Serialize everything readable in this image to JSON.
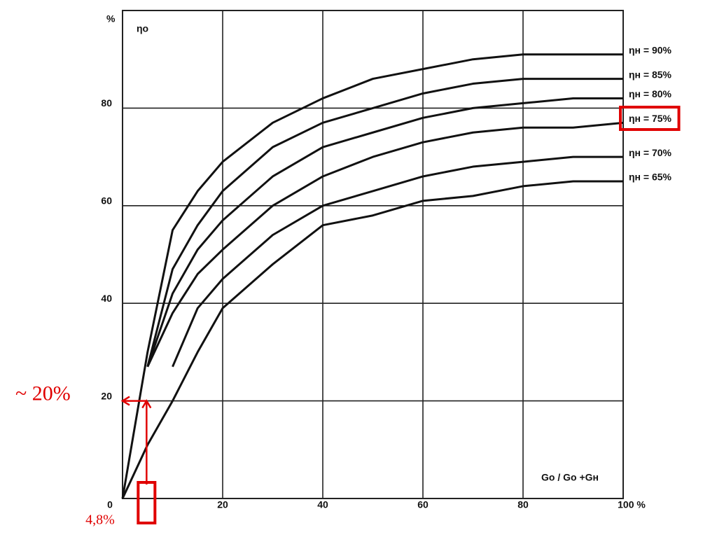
{
  "chart_data": {
    "type": "line",
    "y_axis_label": "%",
    "y_axis_title": "ηо",
    "x_axis_title": "Go / Go +Gн",
    "x": [
      0,
      5,
      10,
      15,
      20,
      30,
      40,
      50,
      60,
      70,
      80,
      90,
      100
    ],
    "series": [
      {
        "name": "ηн = 90%",
        "color": "#111111",
        "values": [
          0,
          30,
          55,
          63,
          69,
          77,
          82,
          86,
          88,
          90,
          91,
          91,
          91
        ]
      },
      {
        "name": "ηн = 85%",
        "color": "#111111",
        "values": [
          null,
          27,
          47,
          56,
          63,
          72,
          77,
          80,
          83,
          85,
          86,
          86,
          86
        ]
      },
      {
        "name": "ηн = 80%",
        "color": "#111111",
        "values": [
          null,
          27,
          42,
          51,
          57,
          66,
          72,
          75,
          78,
          80,
          81,
          82,
          82
        ]
      },
      {
        "name": "ηн = 75%",
        "color": "#111111",
        "values": [
          null,
          27,
          38,
          46,
          51,
          60,
          66,
          70,
          73,
          75,
          76,
          76,
          77
        ]
      },
      {
        "name": "ηн = 70%",
        "color": "#111111",
        "values": [
          null,
          null,
          27,
          39,
          45,
          54,
          60,
          63,
          66,
          68,
          69,
          70,
          70
        ]
      },
      {
        "name": "ηн = 65%",
        "color": "#111111",
        "values": [
          0,
          11,
          20,
          30,
          39,
          48,
          56,
          58,
          61,
          62,
          64,
          65,
          65
        ]
      }
    ],
    "xlim": [
      0,
      100
    ],
    "ylim": [
      0,
      100
    ],
    "xticks": [
      0,
      20,
      40,
      60,
      80,
      {
        "value": 100,
        "label": "100 %"
      }
    ],
    "yticks": [
      20,
      40,
      60,
      80
    ],
    "grid": true,
    "highlight_series": 3,
    "annotations": [
      {
        "text": "~ 20%",
        "value": 20,
        "color": "#e00000"
      },
      {
        "text": "4,8%",
        "value": 4.8,
        "color": "#e00000"
      }
    ]
  }
}
